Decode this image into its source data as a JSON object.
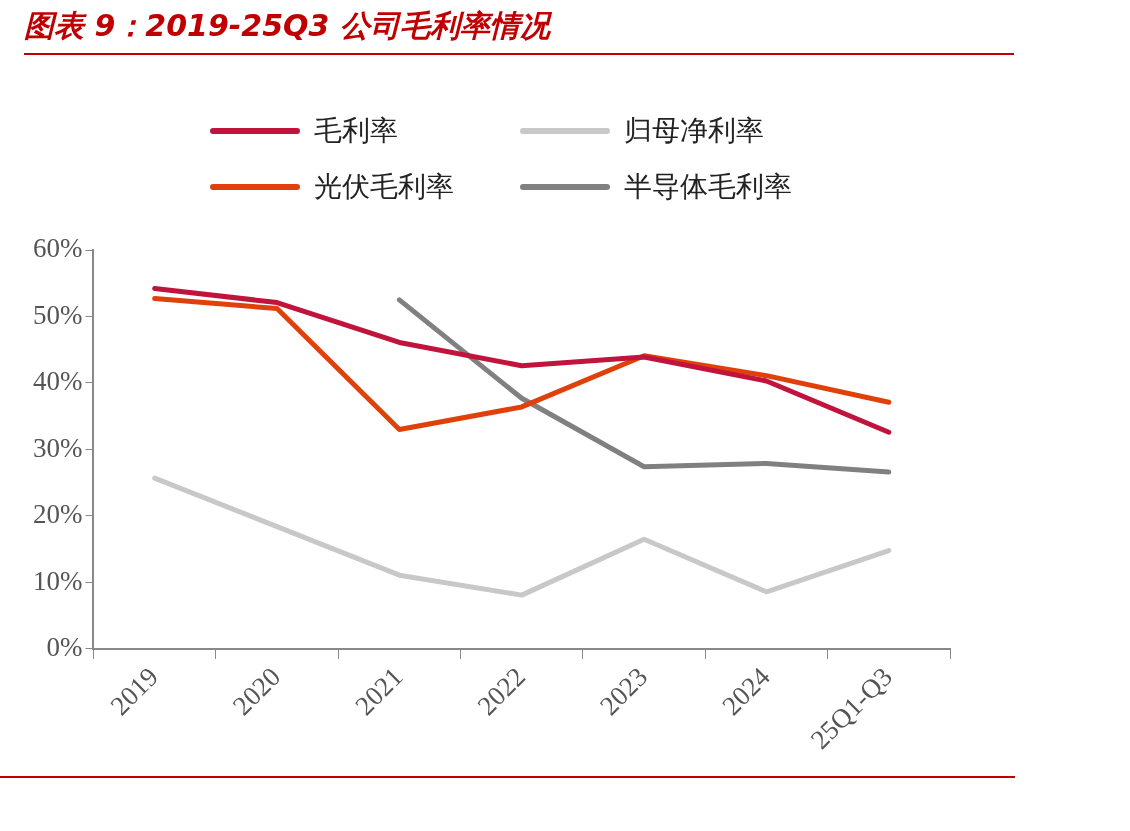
{
  "chart_data": {
    "type": "line",
    "title": "图表 9：2019-25Q3 公司毛利率情况",
    "categories": [
      "2019",
      "2020",
      "2021",
      "2022",
      "2023",
      "2024",
      "25Q1-Q3"
    ],
    "series": [
      {
        "name": "毛利率",
        "color": "#c0143c",
        "values": [
          54.2,
          52.1,
          46.1,
          42.6,
          43.9,
          40.3,
          32.6
        ]
      },
      {
        "name": "归母净利率",
        "color": "#c8c8c8",
        "values": [
          25.7,
          18.4,
          11.1,
          8.1,
          16.5,
          8.6,
          14.8
        ]
      },
      {
        "name": "光伏毛利率",
        "color": "#e0400a",
        "values": [
          52.7,
          51.2,
          33.0,
          36.4,
          44.1,
          41.1,
          37.1
        ]
      },
      {
        "name": "半导体毛利率",
        "color": "#808080",
        "values": [
          null,
          null,
          52.5,
          37.7,
          27.4,
          27.9,
          26.6
        ]
      }
    ],
    "ylim": [
      0,
      60
    ],
    "yticks": [
      {
        "value": 0,
        "label": "0%"
      },
      {
        "value": 10,
        "label": "10%"
      },
      {
        "value": 20,
        "label": "20%"
      },
      {
        "value": 30,
        "label": "30%"
      },
      {
        "value": 40,
        "label": "40%"
      },
      {
        "value": 50,
        "label": "50%"
      },
      {
        "value": 60,
        "label": "60%"
      }
    ],
    "grid": false,
    "legend": "top",
    "marker": "none",
    "line_style": "solid"
  }
}
